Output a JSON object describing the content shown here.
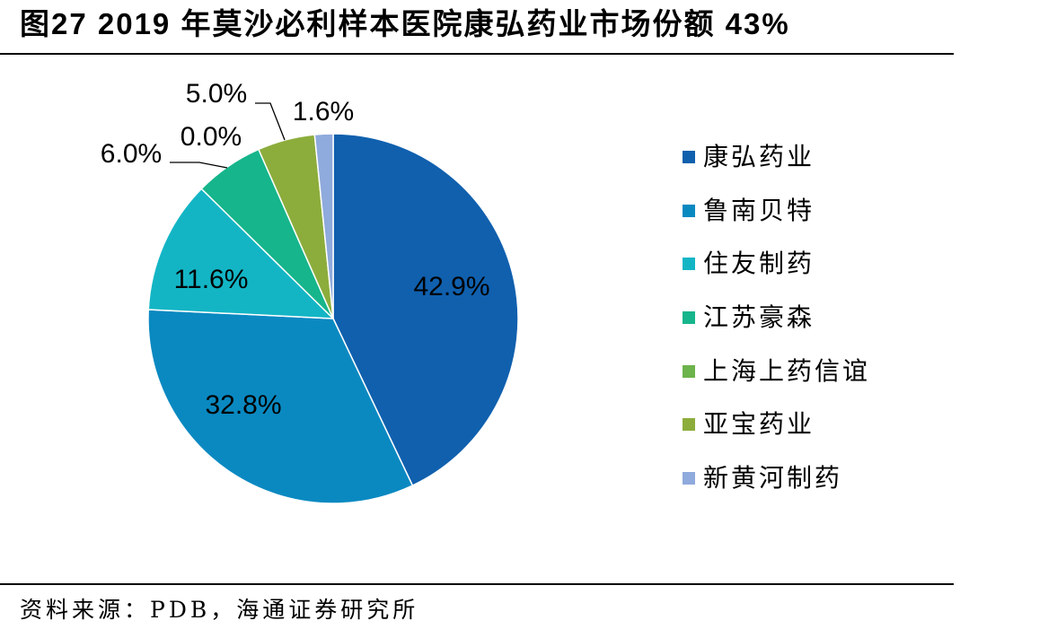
{
  "title": "图27 2019 年莫沙必利样本医院康弘药业市场份额 43%",
  "source": "资料来源：PDB，海通证券研究所",
  "chart_data": {
    "type": "pie",
    "categories": [
      "康弘药业",
      "鲁南贝特",
      "住友制药",
      "江苏豪森",
      "上海上药信谊",
      "亚宝药业",
      "新黄河制药"
    ],
    "values": [
      42.9,
      32.8,
      11.6,
      6.0,
      0.0,
      5.0,
      1.6
    ],
    "data_labels": [
      "42.9%",
      "32.8%",
      "11.6%",
      "6.0%",
      "0.0%",
      "5.0%",
      "1.6%"
    ],
    "colors": [
      "#1060AE",
      "#0A89C1",
      "#13B5C5",
      "#16B58B",
      "#6DB34B",
      "#8CAD3C",
      "#8FAADC"
    ],
    "legend_position": "right"
  }
}
